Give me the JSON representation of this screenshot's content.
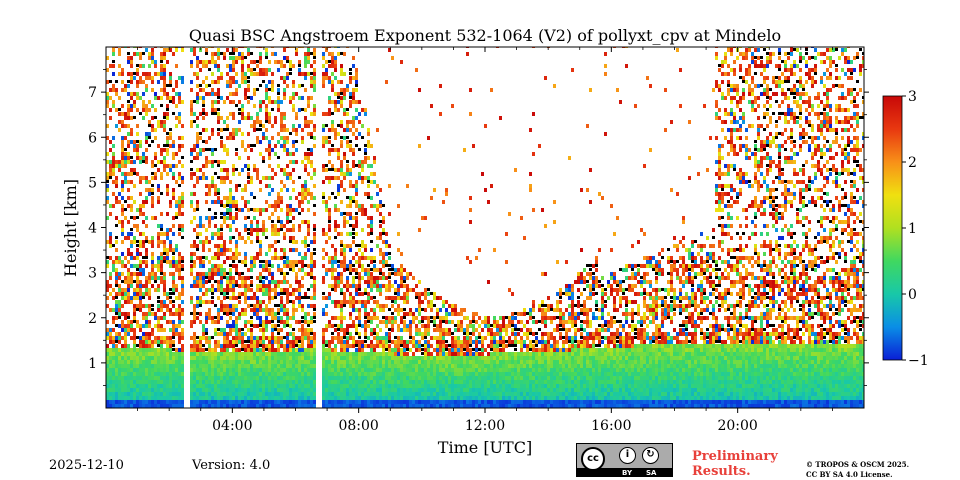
{
  "chart_data": {
    "type": "heatmap",
    "title": "Quasi BSC Angstroem Exponent 532-1064 (V2) of pollyxt_cpv at Mindelo",
    "xlabel": "Time [UTC]",
    "ylabel": "Height [km]",
    "xlim_hours": [
      0,
      24
    ],
    "ylim_km": [
      0,
      8
    ],
    "x_ticks": [
      {
        "hour": 4,
        "label": "04:00"
      },
      {
        "hour": 8,
        "label": "08:00"
      },
      {
        "hour": 12,
        "label": "12:00"
      },
      {
        "hour": 16,
        "label": "16:00"
      },
      {
        "hour": 20,
        "label": "20:00"
      }
    ],
    "y_ticks": [
      {
        "km": 1,
        "label": "1"
      },
      {
        "km": 2,
        "label": "2"
      },
      {
        "km": 3,
        "label": "3"
      },
      {
        "km": 4,
        "label": "4"
      },
      {
        "km": 5,
        "label": "5"
      },
      {
        "km": 6,
        "label": "6"
      },
      {
        "km": 7,
        "label": "7"
      }
    ],
    "colorbar": {
      "min": -1,
      "max": 3,
      "ticks": [
        {
          "value": 3,
          "label": "3"
        },
        {
          "value": 2,
          "label": "2"
        },
        {
          "value": 1,
          "label": "1"
        },
        {
          "value": 0,
          "label": "0"
        },
        {
          "value": -1,
          "label": "−1"
        }
      ],
      "colormap": [
        "#0a1ed6",
        "#0a8ee6",
        "#18c8a8",
        "#40d860",
        "#b0e020",
        "#f0e010",
        "#f89018",
        "#e83810",
        "#c80808"
      ]
    },
    "data_gaps_hours": [
      [
        2.45,
        2.6
      ],
      [
        6.6,
        6.75
      ]
    ],
    "notes": {
      "boundary_layer_top_km": [
        1.3,
        1.2,
        1.25,
        1.1,
        1.2,
        1.35,
        1.4,
        1.35
      ],
      "dominant_value_in_boundary_layer": 0.2,
      "dominant_value_above": 2.0
    }
  },
  "footer": {
    "date": "2025-12-10",
    "version": "Version: 4.0",
    "license_badge": {
      "cc": "cc",
      "by": "BY",
      "sa": "SA"
    },
    "preliminary_line1": "Preliminary",
    "preliminary_line2": "Results.",
    "copyright_line1": "© TROPOS & OSCM 2025.",
    "copyright_line2": "CC BY SA 4.0 License."
  }
}
